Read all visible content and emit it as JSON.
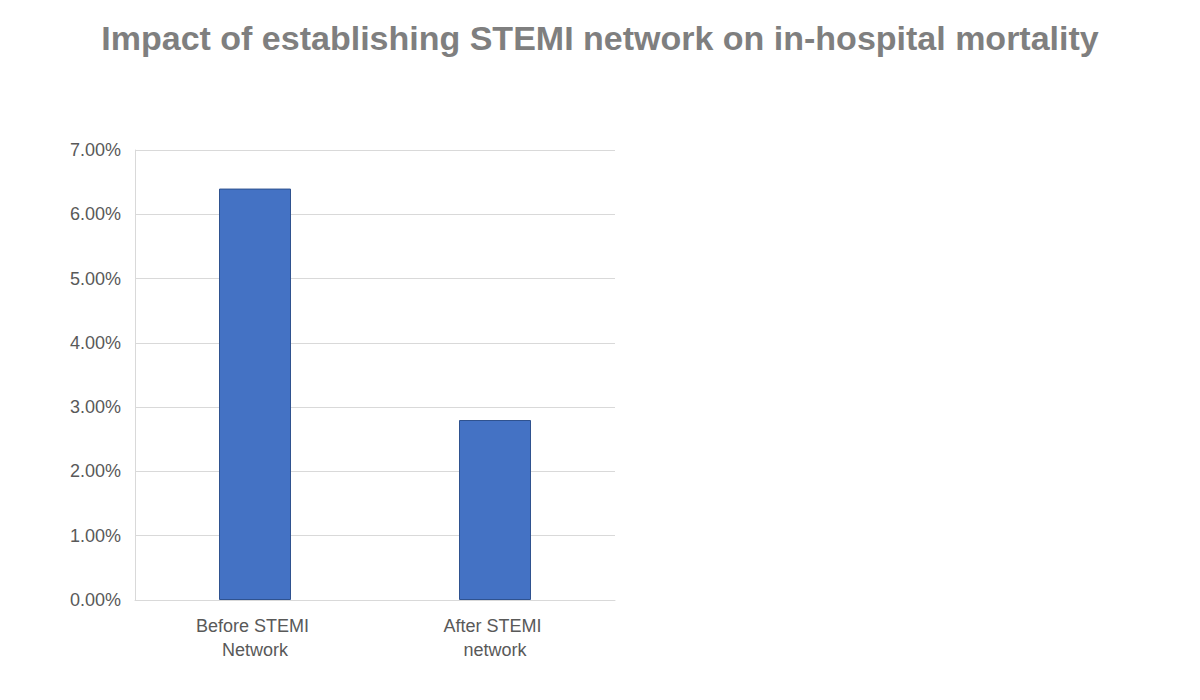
{
  "chart_data": {
    "type": "bar",
    "title": "Impact of establishing STEMI network on in-hospital mortality",
    "categories": [
      "Before STEMI Network",
      "After STEMI network"
    ],
    "values": [
      6.4,
      2.8
    ],
    "color": "#4472c4",
    "ylim": [
      0,
      7
    ],
    "yticks": [
      {
        "value": 0,
        "label": "0.00%"
      },
      {
        "value": 1,
        "label": "1.00%"
      },
      {
        "value": 2,
        "label": "2.00%"
      },
      {
        "value": 3,
        "label": "3.00%"
      },
      {
        "value": 4,
        "label": "4.00%"
      },
      {
        "value": 5,
        "label": "5.00%"
      },
      {
        "value": 6,
        "label": "6.00%"
      },
      {
        "value": 7,
        "label": "7.00%"
      }
    ],
    "grid": true
  }
}
